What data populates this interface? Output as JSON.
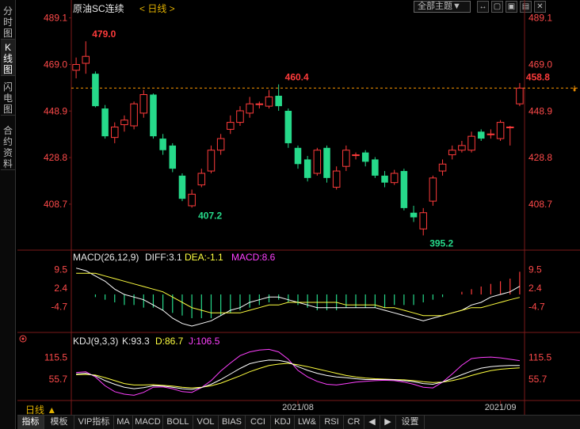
{
  "sidebar": {
    "tabs": [
      {
        "label": "分时图",
        "active": false
      },
      {
        "label": "K线图",
        "active": true
      },
      {
        "label": "闪电图",
        "active": false
      },
      {
        "label": "合约资料",
        "active": false
      }
    ]
  },
  "header": {
    "title": "原油SC连续",
    "period": "< 日线 >",
    "theme": "全部主题▼",
    "buttons": [
      "↔",
      "▢",
      "▣",
      "▤",
      "✕"
    ]
  },
  "price_axis": {
    "labels": [
      "489.1",
      "469.0",
      "448.9",
      "428.8",
      "408.7"
    ]
  },
  "macd": {
    "title": "MACD(26,12,9)",
    "diff": "DIFF:3.1",
    "dea": "DEA:-1.1",
    "macd": "MACD:8.6",
    "axis": [
      "9.5",
      "2.4",
      "-4.7"
    ]
  },
  "kdj": {
    "title": "KDJ(9,3,3)",
    "k": "K:93.3",
    "d": "D:86.7",
    "j": "J:106.5",
    "axis": [
      "115.5",
      "55.7"
    ]
  },
  "dates": [
    "2021/08",
    "2021/09"
  ],
  "annotations": {
    "high": "479.0",
    "low1": "407.2",
    "mid": "460.4",
    "low2": "395.2",
    "last": "458.8"
  },
  "period_button": "日线 ▲",
  "bottom_tabs": [
    "指标",
    "模板",
    "VIP指标",
    "MA",
    "MACD",
    "BOLL",
    "VOL",
    "BIAS",
    "CCI",
    "KDJ",
    "LW&",
    "RSI",
    "CR",
    "◀",
    "▶",
    "设置"
  ],
  "colors": {
    "up": "#ff3b3b",
    "down": "#26d98a",
    "price_label": "#ff4a4a",
    "white_line": "#ffffff",
    "yellow_line": "#ffff40",
    "magenta_line": "#ff40ff",
    "dashed": "#ff9900"
  },
  "chart_data": {
    "type": "candlestick",
    "y_range": [
      395,
      490
    ],
    "candles": [
      {
        "o": 466.5,
        "c": 469.0,
        "h": 472.0,
        "l": 463.0
      },
      {
        "o": 469.5,
        "c": 472.5,
        "h": 479.0,
        "l": 465.0
      },
      {
        "o": 465.0,
        "c": 451.0,
        "h": 466.0,
        "l": 450.5
      },
      {
        "o": 450.0,
        "c": 438.0,
        "h": 451.5,
        "l": 437.0
      },
      {
        "o": 437.5,
        "c": 442.0,
        "h": 444.0,
        "l": 435.0
      },
      {
        "o": 443.0,
        "c": 445.0,
        "h": 447.0,
        "l": 440.0
      },
      {
        "o": 442.5,
        "c": 452.0,
        "h": 453.0,
        "l": 441.0
      },
      {
        "o": 448.0,
        "c": 456.0,
        "h": 458.0,
        "l": 446.0
      },
      {
        "o": 456.0,
        "c": 438.0,
        "h": 456.5,
        "l": 437.0
      },
      {
        "o": 437.0,
        "c": 432.0,
        "h": 439.0,
        "l": 430.0
      },
      {
        "o": 434.0,
        "c": 424.0,
        "h": 435.0,
        "l": 422.5
      },
      {
        "o": 421.0,
        "c": 411.0,
        "h": 422.0,
        "l": 410.0
      },
      {
        "o": 408.0,
        "c": 413.0,
        "h": 415.0,
        "l": 407.2
      },
      {
        "o": 417.0,
        "c": 422.0,
        "h": 424.0,
        "l": 416.0
      },
      {
        "o": 423.0,
        "c": 432.0,
        "h": 434.0,
        "l": 422.0
      },
      {
        "o": 432.0,
        "c": 437.0,
        "h": 439.0,
        "l": 430.0
      },
      {
        "o": 441.0,
        "c": 444.0,
        "h": 447.0,
        "l": 439.0
      },
      {
        "o": 444.0,
        "c": 449.0,
        "h": 451.0,
        "l": 442.5
      },
      {
        "o": 448.0,
        "c": 452.0,
        "h": 455.0,
        "l": 446.0
      },
      {
        "o": 452.0,
        "c": 452.0,
        "h": 453.0,
        "l": 450.0
      },
      {
        "o": 451.0,
        "c": 455.0,
        "h": 458.0,
        "l": 450.0
      },
      {
        "o": 455.5,
        "c": 451.0,
        "h": 460.4,
        "l": 449.0
      },
      {
        "o": 449.0,
        "c": 435.0,
        "h": 450.0,
        "l": 433.0
      },
      {
        "o": 433.0,
        "c": 426.0,
        "h": 434.0,
        "l": 424.0
      },
      {
        "o": 428.0,
        "c": 420.0,
        "h": 429.5,
        "l": 418.5
      },
      {
        "o": 422.0,
        "c": 432.0,
        "h": 433.0,
        "l": 421.0
      },
      {
        "o": 433.0,
        "c": 420.0,
        "h": 434.0,
        "l": 418.0
      },
      {
        "o": 416.0,
        "c": 423.0,
        "h": 425.0,
        "l": 415.0
      },
      {
        "o": 425.0,
        "c": 432.0,
        "h": 434.0,
        "l": 423.0
      },
      {
        "o": 430.0,
        "c": 430.0,
        "h": 431.0,
        "l": 428.0
      },
      {
        "o": 431.0,
        "c": 427.0,
        "h": 432.0,
        "l": 425.0
      },
      {
        "o": 428.0,
        "c": 421.0,
        "h": 429.0,
        "l": 420.0
      },
      {
        "o": 421.0,
        "c": 418.0,
        "h": 423.0,
        "l": 416.0
      },
      {
        "o": 418.0,
        "c": 422.0,
        "h": 423.5,
        "l": 417.0
      },
      {
        "o": 423.0,
        "c": 407.0,
        "h": 424.0,
        "l": 406.0
      },
      {
        "o": 405.0,
        "c": 403.0,
        "h": 408.0,
        "l": 401.0
      },
      {
        "o": 398.0,
        "c": 405.0,
        "h": 407.0,
        "l": 395.2
      },
      {
        "o": 410.0,
        "c": 420.0,
        "h": 421.0,
        "l": 408.0
      },
      {
        "o": 423.0,
        "c": 426.0,
        "h": 428.0,
        "l": 421.0
      },
      {
        "o": 430.0,
        "c": 432.0,
        "h": 434.0,
        "l": 428.0
      },
      {
        "o": 432.0,
        "c": 434.0,
        "h": 436.0,
        "l": 431.0
      },
      {
        "o": 432.0,
        "c": 438.0,
        "h": 440.0,
        "l": 431.0
      },
      {
        "o": 440.0,
        "c": 437.0,
        "h": 441.0,
        "l": 436.0
      },
      {
        "o": 439.0,
        "c": 439.0,
        "h": 441.0,
        "l": 437.0
      },
      {
        "o": 437.0,
        "c": 444.0,
        "h": 445.0,
        "l": 436.0
      },
      {
        "o": 442.0,
        "c": 442.0,
        "h": 442.5,
        "l": 434.0
      },
      {
        "o": 452.0,
        "c": 458.8,
        "h": 461.0,
        "l": 451.0
      }
    ],
    "macd_bars": [
      0,
      0,
      -1,
      -2,
      -3,
      -4,
      -4,
      -5,
      -5,
      -6,
      -7,
      -8,
      -9,
      -9,
      -9,
      -8,
      -7,
      -6,
      -5,
      -4,
      -3,
      -2,
      -3,
      -4,
      -5,
      -6,
      -6,
      -6,
      -5,
      -5,
      -5,
      -5,
      -5,
      -4,
      -4,
      -4,
      -3,
      -2,
      -1,
      0,
      1,
      2,
      3,
      4,
      5,
      6,
      8.6
    ],
    "macd_diff": [
      10,
      9,
      7,
      5,
      2,
      0,
      -1,
      -2,
      -4,
      -6,
      -9,
      -11,
      -12,
      -11,
      -10,
      -8,
      -6,
      -5,
      -3,
      -2,
      -1,
      -1,
      -2,
      -3,
      -4,
      -5,
      -5,
      -5,
      -5,
      -5,
      -5,
      -5,
      -6,
      -7,
      -8,
      -9,
      -10,
      -9,
      -8,
      -7,
      -6,
      -4,
      -3,
      -1,
      0,
      1,
      3.1
    ],
    "macd_dea": [
      8,
      8,
      8,
      7,
      6,
      5,
      4,
      3,
      2,
      1,
      -1,
      -3,
      -5,
      -6,
      -7,
      -7,
      -7,
      -7,
      -6,
      -5,
      -4,
      -4,
      -3,
      -3,
      -3,
      -3,
      -3,
      -3,
      -4,
      -4,
      -4,
      -4,
      -5,
      -5,
      -6,
      -7,
      -8,
      -8,
      -8,
      -7,
      -6,
      -5,
      -5,
      -4,
      -3,
      -2,
      -1.1
    ],
    "kdj_k": [
      70,
      72,
      65,
      52,
      42,
      34,
      30,
      33,
      38,
      37,
      34,
      30,
      28,
      33,
      42,
      55,
      70,
      85,
      98,
      104,
      108,
      107,
      102,
      90,
      80,
      72,
      66,
      62,
      60,
      57,
      55,
      55,
      55,
      54,
      52,
      49,
      44,
      42,
      48,
      58,
      68,
      78,
      86,
      90,
      92,
      93,
      93.3
    ],
    "kdj_d": [
      68,
      69,
      67,
      60,
      52,
      44,
      40,
      40,
      41,
      39,
      37,
      34,
      32,
      34,
      38,
      45,
      55,
      65,
      76,
      85,
      93,
      97,
      99,
      95,
      90,
      84,
      78,
      72,
      66,
      62,
      59,
      57,
      56,
      55,
      54,
      52,
      49,
      47,
      48,
      52,
      58,
      66,
      73,
      79,
      83,
      85,
      86.7
    ],
    "kdj_j": [
      74,
      76,
      62,
      38,
      22,
      15,
      12,
      20,
      34,
      35,
      30,
      22,
      20,
      33,
      52,
      78,
      100,
      120,
      130,
      135,
      137,
      130,
      110,
      80,
      62,
      50,
      42,
      40,
      44,
      48,
      50,
      52,
      53,
      52,
      48,
      42,
      34,
      32,
      48,
      70,
      94,
      112,
      115,
      116,
      114,
      110,
      106.5
    ]
  }
}
